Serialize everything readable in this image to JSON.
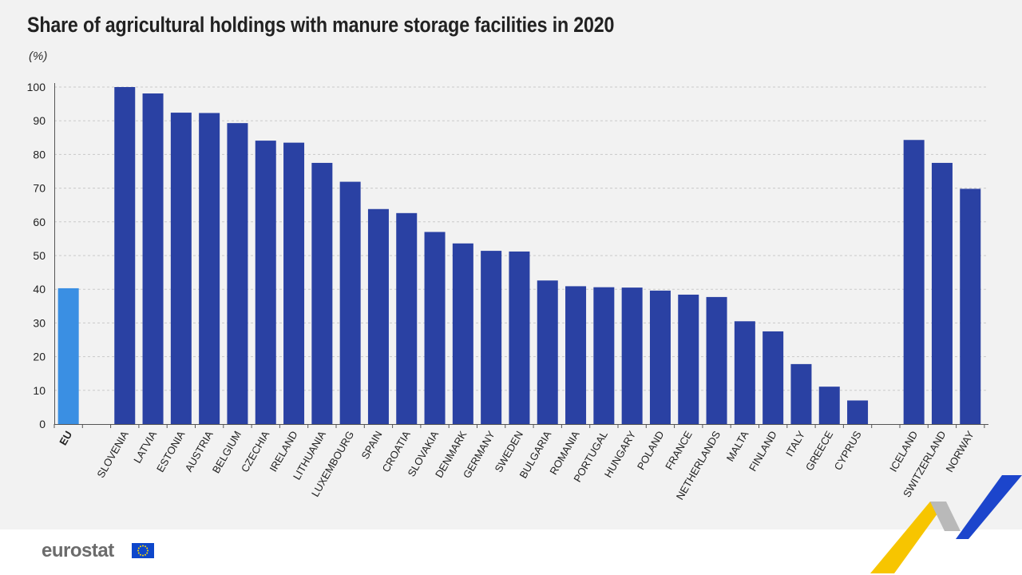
{
  "header": {
    "title": "Share of agricultural holdings with manure storage facilities in 2020",
    "unit": "(%)"
  },
  "footer": {
    "logo_text": "eurostat",
    "flag_icon": "eu-flag-icon"
  },
  "colors": {
    "eu_bar": "#3a8fe3",
    "country_bar": "#2a41a3",
    "grid": "#c9c9c9",
    "text": "#222222",
    "background": "#f2f2f2"
  },
  "chart_data": {
    "type": "bar",
    "title": "Share of agricultural holdings with manure storage facilities in 2020",
    "ylabel": "(%)",
    "ylim": [
      0,
      100
    ],
    "yticks": [
      0,
      10,
      20,
      30,
      40,
      50,
      60,
      70,
      80,
      90,
      100
    ],
    "grid": true,
    "categories": [
      "EU",
      "SLOVENIA",
      "LATVIA",
      "ESTONIA",
      "AUSTRIA",
      "BELGIUM",
      "CZECHIA",
      "IRELAND",
      "LITHUANIA",
      "LUXEMBOURG",
      "SPAIN",
      "CROATIA",
      "SLOVAKIA",
      "DENMARK",
      "GERMANY",
      "SWEDEN",
      "BULGARIA",
      "ROMANIA",
      "PORTUGAL",
      "HUNGARY",
      "POLAND",
      "FRANCE",
      "NETHERLANDS",
      "MALTA",
      "FINLAND",
      "ITALY",
      "GREECE",
      "CYPRUS",
      "ICELAND",
      "SWITZERLAND",
      "NORWAY"
    ],
    "values": [
      40.3,
      100.0,
      98.1,
      92.4,
      92.3,
      89.3,
      84.1,
      83.5,
      77.5,
      71.9,
      63.8,
      62.6,
      57.0,
      53.6,
      51.4,
      51.2,
      42.6,
      40.9,
      40.6,
      40.5,
      39.6,
      38.4,
      37.7,
      30.5,
      27.5,
      17.8,
      11.1,
      7.0,
      84.3,
      77.5,
      69.8
    ],
    "groups": [
      "eu",
      "member",
      "member",
      "member",
      "member",
      "member",
      "member",
      "member",
      "member",
      "member",
      "member",
      "member",
      "member",
      "member",
      "member",
      "member",
      "member",
      "member",
      "member",
      "member",
      "member",
      "member",
      "member",
      "member",
      "member",
      "member",
      "member",
      "member",
      "efta",
      "efta",
      "efta"
    ]
  }
}
